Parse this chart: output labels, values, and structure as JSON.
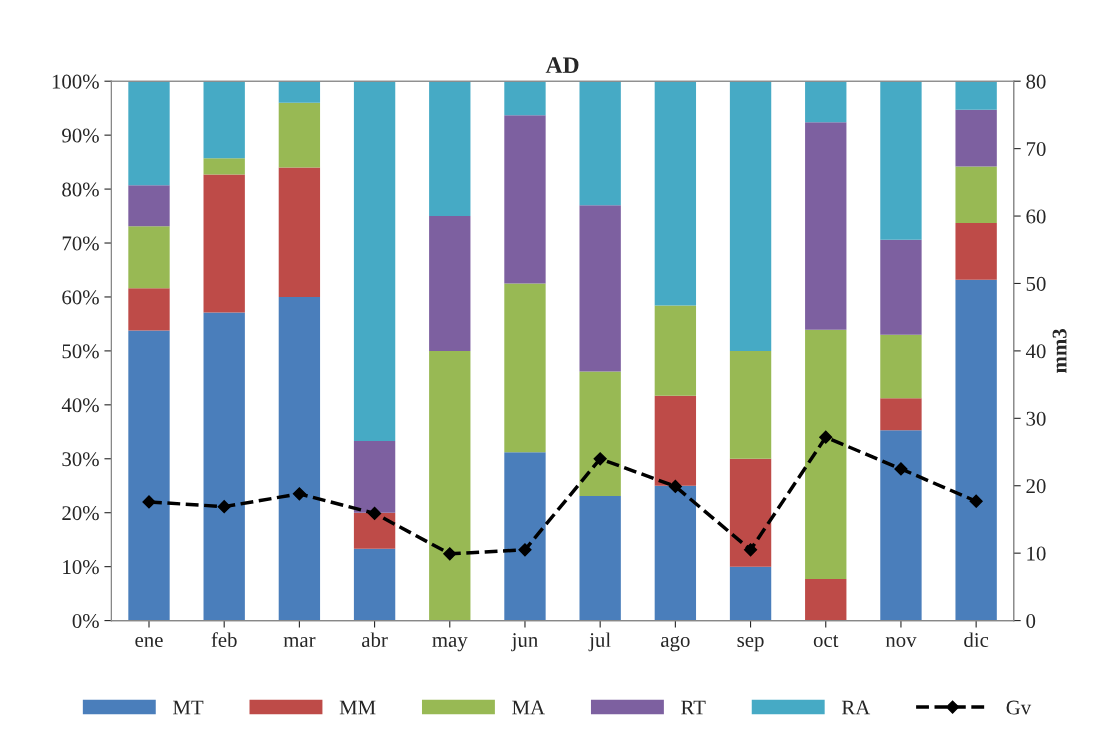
{
  "chart_data": {
    "type": "bar",
    "title": "AD",
    "y2label": "mm3",
    "stacked": true,
    "legend": "bottom",
    "grid": false,
    "categories": [
      "ene",
      "feb",
      "mar",
      "abr",
      "may",
      "jun",
      "jul",
      "ago",
      "sep",
      "oct",
      "nov",
      "dic"
    ],
    "ylim": [
      0,
      100
    ],
    "yticks": [
      {
        "value": 0,
        "label": "0%"
      },
      {
        "value": 10,
        "label": "10%"
      },
      {
        "value": 20,
        "label": "20%"
      },
      {
        "value": 30,
        "label": "30%"
      },
      {
        "value": 40,
        "label": "40%"
      },
      {
        "value": 50,
        "label": "50%"
      },
      {
        "value": 60,
        "label": "60%"
      },
      {
        "value": 70,
        "label": "70%"
      },
      {
        "value": 80,
        "label": "80%"
      },
      {
        "value": 90,
        "label": "90%"
      },
      {
        "value": 100,
        "label": "100%"
      }
    ],
    "y2lim": [
      0,
      80
    ],
    "y2ticks": [
      0,
      10,
      20,
      30,
      40,
      50,
      60,
      70,
      80
    ],
    "series": [
      {
        "name": "MT",
        "color": "#4a7ebb",
        "values": [
          53.8,
          57.1,
          60,
          13.3,
          0,
          31.2,
          23.1,
          25,
          10,
          0,
          35.3,
          63.2
        ]
      },
      {
        "name": "MM",
        "color": "#be4b48",
        "values": [
          7.8,
          25.6,
          24,
          6.7,
          0,
          0,
          0,
          16.7,
          20,
          7.7,
          5.9,
          10.5
        ]
      },
      {
        "name": "MA",
        "color": "#98b954",
        "values": [
          11.5,
          3,
          12,
          0,
          50,
          31.3,
          23.1,
          16.7,
          20,
          46.2,
          11.8,
          10.5
        ]
      },
      {
        "name": "RT",
        "color": "#7d60a0",
        "values": [
          7.6,
          0,
          0,
          13.3,
          25,
          31.2,
          30.8,
          0,
          0,
          38.5,
          17.6,
          10.5
        ]
      },
      {
        "name": "RA",
        "color": "#46aac5",
        "values": [
          19.3,
          14.3,
          4,
          66.7,
          25,
          6.3,
          23,
          41.6,
          50,
          7.6,
          29.4,
          5.3
        ]
      },
      {
        "name": "Gv",
        "type": "line",
        "axis": "y2",
        "color": "#000000",
        "marker": "diamond",
        "line_style": "dashed",
        "values": [
          17.6,
          16.9,
          18.8,
          15.9,
          9.9,
          10.5,
          24,
          19.9,
          10.5,
          27.2,
          22.5,
          17.7
        ]
      }
    ]
  }
}
